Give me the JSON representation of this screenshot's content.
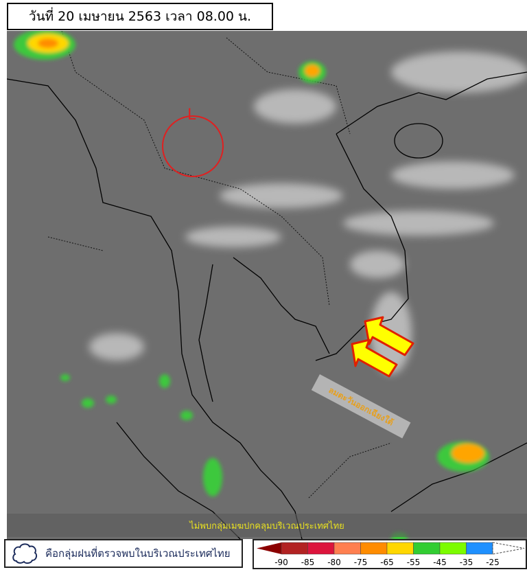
{
  "title": "วันที่ 20 เมษายน 2563 เวลา 08.00 น.",
  "low_pressure_label": "L",
  "wind_label": "ลมตะวันออกเฉียงใต้",
  "status_message": "ไม่พบกลุ่มเมฆปกคลุมบริเวณประเทศไทย",
  "legend": {
    "cloud_icon": "cloud-outline-icon",
    "cloud_description": "คือกลุ่มฝนที่ตรวจพบในบริเวณประเทศไทย",
    "scale_labels": [
      "-90",
      "-85",
      "-80",
      "-75",
      "-65",
      "-55",
      "-45",
      "-35",
      "-25"
    ],
    "scale_colors": [
      "#8b0000",
      "#b22222",
      "#dc143c",
      "#ff7f50",
      "#ff8c00",
      "#ffd700",
      "#32cd32",
      "#7cfc00",
      "#1e90ff"
    ]
  },
  "colors": {
    "arrow_fill": "#ffff00",
    "arrow_border": "#e02000",
    "low_circle": "#e02020"
  }
}
